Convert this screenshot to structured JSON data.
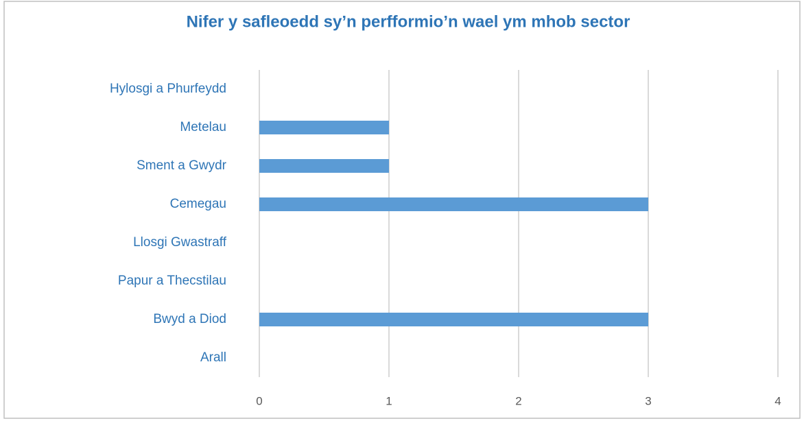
{
  "chart_data": {
    "type": "bar",
    "orientation": "horizontal",
    "title": "Nifer y safleoedd sy’n perfformio’n wael ym mhob sector",
    "categories": [
      "Hylosgi a Phurfeydd",
      "Metelau",
      "Sment a Gwydr",
      "Cemegau",
      "Llosgi Gwastraff",
      "Papur a Thecstilau",
      "Bwyd a Diod",
      "Arall"
    ],
    "values": [
      0,
      1,
      1,
      3,
      0,
      0,
      3,
      0
    ],
    "color": "#5b9bd5",
    "xlim": [
      0,
      4
    ],
    "xticks": [
      0,
      1,
      2,
      3,
      4
    ],
    "grid": true
  }
}
